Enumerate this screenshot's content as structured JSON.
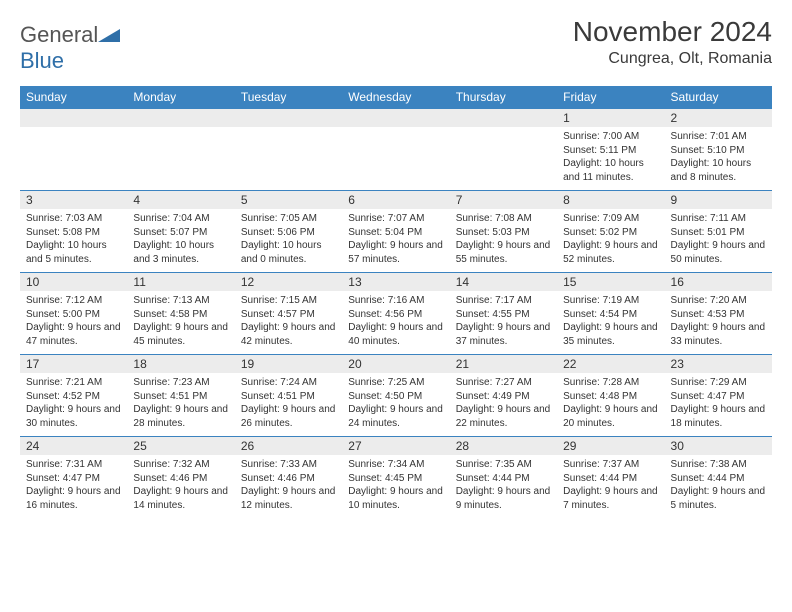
{
  "brand": {
    "part1": "General",
    "part2": "Blue"
  },
  "title": "November 2024",
  "location": "Cungrea, Olt, Romania",
  "dayHeaders": [
    "Sunday",
    "Monday",
    "Tuesday",
    "Wednesday",
    "Thursday",
    "Friday",
    "Saturday"
  ],
  "colors": {
    "headerBg": "#3b83c0",
    "dayNumBg": "#ececec",
    "rowBorder": "#3b83c0",
    "brandBlue": "#2f6fa8"
  },
  "weeks": [
    [
      {
        "n": "",
        "sr": "",
        "ss": "",
        "dl": ""
      },
      {
        "n": "",
        "sr": "",
        "ss": "",
        "dl": ""
      },
      {
        "n": "",
        "sr": "",
        "ss": "",
        "dl": ""
      },
      {
        "n": "",
        "sr": "",
        "ss": "",
        "dl": ""
      },
      {
        "n": "",
        "sr": "",
        "ss": "",
        "dl": ""
      },
      {
        "n": "1",
        "sr": "Sunrise: 7:00 AM",
        "ss": "Sunset: 5:11 PM",
        "dl": "Daylight: 10 hours and 11 minutes."
      },
      {
        "n": "2",
        "sr": "Sunrise: 7:01 AM",
        "ss": "Sunset: 5:10 PM",
        "dl": "Daylight: 10 hours and 8 minutes."
      }
    ],
    [
      {
        "n": "3",
        "sr": "Sunrise: 7:03 AM",
        "ss": "Sunset: 5:08 PM",
        "dl": "Daylight: 10 hours and 5 minutes."
      },
      {
        "n": "4",
        "sr": "Sunrise: 7:04 AM",
        "ss": "Sunset: 5:07 PM",
        "dl": "Daylight: 10 hours and 3 minutes."
      },
      {
        "n": "5",
        "sr": "Sunrise: 7:05 AM",
        "ss": "Sunset: 5:06 PM",
        "dl": "Daylight: 10 hours and 0 minutes."
      },
      {
        "n": "6",
        "sr": "Sunrise: 7:07 AM",
        "ss": "Sunset: 5:04 PM",
        "dl": "Daylight: 9 hours and 57 minutes."
      },
      {
        "n": "7",
        "sr": "Sunrise: 7:08 AM",
        "ss": "Sunset: 5:03 PM",
        "dl": "Daylight: 9 hours and 55 minutes."
      },
      {
        "n": "8",
        "sr": "Sunrise: 7:09 AM",
        "ss": "Sunset: 5:02 PM",
        "dl": "Daylight: 9 hours and 52 minutes."
      },
      {
        "n": "9",
        "sr": "Sunrise: 7:11 AM",
        "ss": "Sunset: 5:01 PM",
        "dl": "Daylight: 9 hours and 50 minutes."
      }
    ],
    [
      {
        "n": "10",
        "sr": "Sunrise: 7:12 AM",
        "ss": "Sunset: 5:00 PM",
        "dl": "Daylight: 9 hours and 47 minutes."
      },
      {
        "n": "11",
        "sr": "Sunrise: 7:13 AM",
        "ss": "Sunset: 4:58 PM",
        "dl": "Daylight: 9 hours and 45 minutes."
      },
      {
        "n": "12",
        "sr": "Sunrise: 7:15 AM",
        "ss": "Sunset: 4:57 PM",
        "dl": "Daylight: 9 hours and 42 minutes."
      },
      {
        "n": "13",
        "sr": "Sunrise: 7:16 AM",
        "ss": "Sunset: 4:56 PM",
        "dl": "Daylight: 9 hours and 40 minutes."
      },
      {
        "n": "14",
        "sr": "Sunrise: 7:17 AM",
        "ss": "Sunset: 4:55 PM",
        "dl": "Daylight: 9 hours and 37 minutes."
      },
      {
        "n": "15",
        "sr": "Sunrise: 7:19 AM",
        "ss": "Sunset: 4:54 PM",
        "dl": "Daylight: 9 hours and 35 minutes."
      },
      {
        "n": "16",
        "sr": "Sunrise: 7:20 AM",
        "ss": "Sunset: 4:53 PM",
        "dl": "Daylight: 9 hours and 33 minutes."
      }
    ],
    [
      {
        "n": "17",
        "sr": "Sunrise: 7:21 AM",
        "ss": "Sunset: 4:52 PM",
        "dl": "Daylight: 9 hours and 30 minutes."
      },
      {
        "n": "18",
        "sr": "Sunrise: 7:23 AM",
        "ss": "Sunset: 4:51 PM",
        "dl": "Daylight: 9 hours and 28 minutes."
      },
      {
        "n": "19",
        "sr": "Sunrise: 7:24 AM",
        "ss": "Sunset: 4:51 PM",
        "dl": "Daylight: 9 hours and 26 minutes."
      },
      {
        "n": "20",
        "sr": "Sunrise: 7:25 AM",
        "ss": "Sunset: 4:50 PM",
        "dl": "Daylight: 9 hours and 24 minutes."
      },
      {
        "n": "21",
        "sr": "Sunrise: 7:27 AM",
        "ss": "Sunset: 4:49 PM",
        "dl": "Daylight: 9 hours and 22 minutes."
      },
      {
        "n": "22",
        "sr": "Sunrise: 7:28 AM",
        "ss": "Sunset: 4:48 PM",
        "dl": "Daylight: 9 hours and 20 minutes."
      },
      {
        "n": "23",
        "sr": "Sunrise: 7:29 AM",
        "ss": "Sunset: 4:47 PM",
        "dl": "Daylight: 9 hours and 18 minutes."
      }
    ],
    [
      {
        "n": "24",
        "sr": "Sunrise: 7:31 AM",
        "ss": "Sunset: 4:47 PM",
        "dl": "Daylight: 9 hours and 16 minutes."
      },
      {
        "n": "25",
        "sr": "Sunrise: 7:32 AM",
        "ss": "Sunset: 4:46 PM",
        "dl": "Daylight: 9 hours and 14 minutes."
      },
      {
        "n": "26",
        "sr": "Sunrise: 7:33 AM",
        "ss": "Sunset: 4:46 PM",
        "dl": "Daylight: 9 hours and 12 minutes."
      },
      {
        "n": "27",
        "sr": "Sunrise: 7:34 AM",
        "ss": "Sunset: 4:45 PM",
        "dl": "Daylight: 9 hours and 10 minutes."
      },
      {
        "n": "28",
        "sr": "Sunrise: 7:35 AM",
        "ss": "Sunset: 4:44 PM",
        "dl": "Daylight: 9 hours and 9 minutes."
      },
      {
        "n": "29",
        "sr": "Sunrise: 7:37 AM",
        "ss": "Sunset: 4:44 PM",
        "dl": "Daylight: 9 hours and 7 minutes."
      },
      {
        "n": "30",
        "sr": "Sunrise: 7:38 AM",
        "ss": "Sunset: 4:44 PM",
        "dl": "Daylight: 9 hours and 5 minutes."
      }
    ]
  ]
}
